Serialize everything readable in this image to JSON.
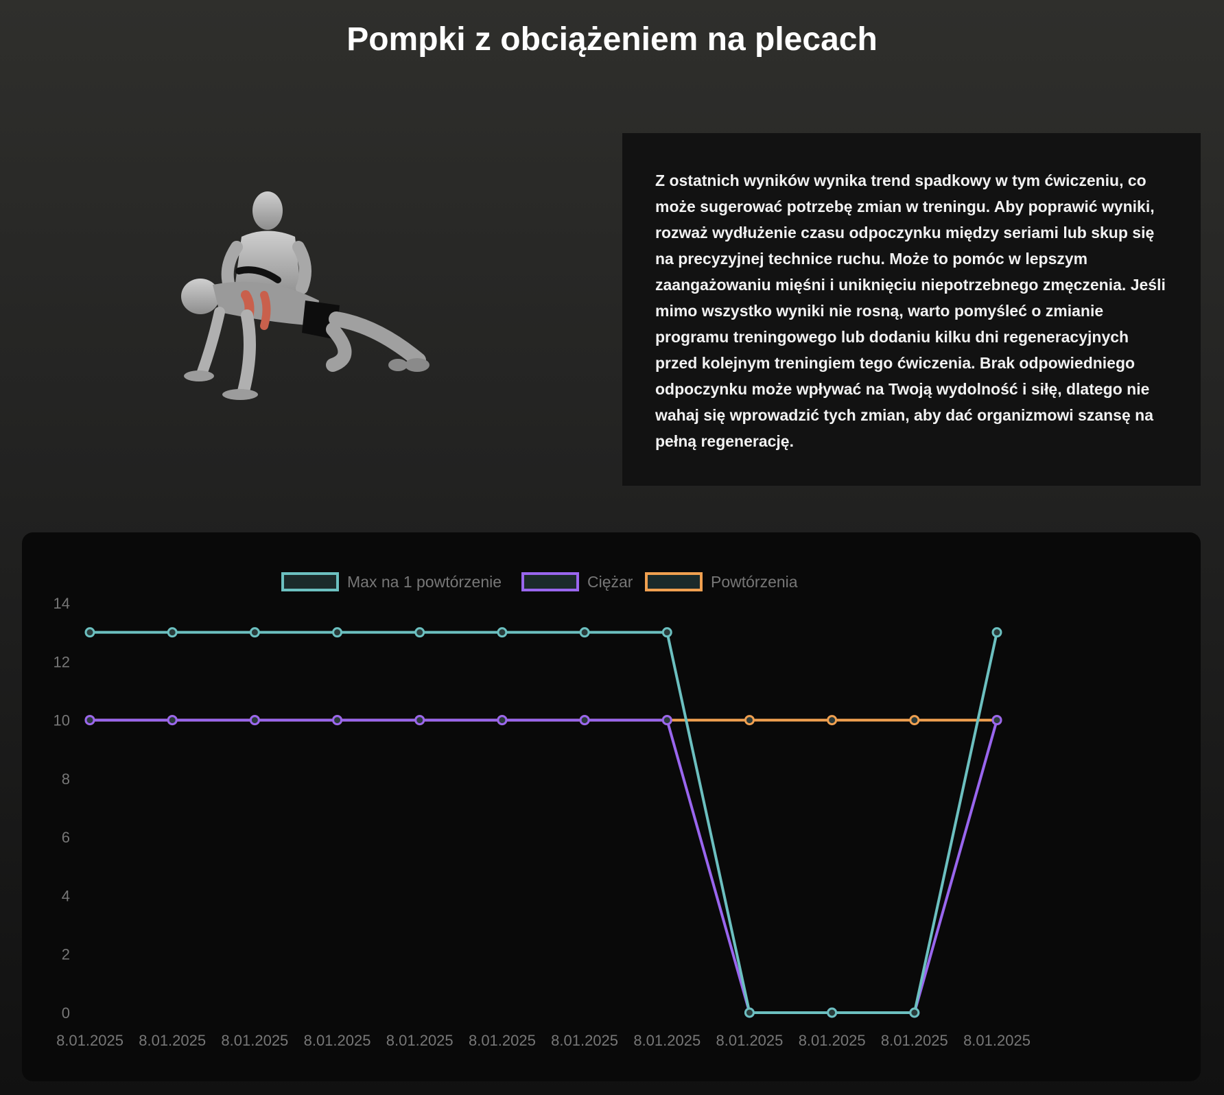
{
  "page": {
    "title": "Pompki z obciążeniem na plecach"
  },
  "advice": {
    "text": "Z ostatnich wyników wynika trend spadkowy w tym ćwiczeniu, co może sugerować potrzebę zmian w treningu. Aby poprawić wyniki, rozważ wydłużenie czasu odpoczynku między seriami lub skup się na precyzyjnej technice ruchu. Może to pomóc w lepszym zaangażowaniu mięśni i uniknięciu niepotrzebnego zmęczenia. Jeśli mimo wszystko wyniki nie rosną, warto pomyśleć o zmianie programu treningowego lub dodaniu kilku dni regeneracyjnych przed kolejnym treningiem tego ćwiczenia. Brak odpowiedniego odpoczynku może wpływać na Twoją wydolność i siłę, dlatego nie wahaj się wprowadzić tych zmian, aby dać organizmowi szansę na pełną regenerację."
  },
  "illustration": {
    "icon": "weighted-pushup-figure"
  },
  "chart_data": {
    "type": "line",
    "categories": [
      "8.01.2025",
      "8.01.2025",
      "8.01.2025",
      "8.01.2025",
      "8.01.2025",
      "8.01.2025",
      "8.01.2025",
      "8.01.2025",
      "8.01.2025",
      "8.01.2025",
      "8.01.2025",
      "8.01.2025"
    ],
    "series": [
      {
        "name": "Max na 1 powtórzenie",
        "color": "#6cc0c0",
        "values": [
          13,
          13,
          13,
          13,
          13,
          13,
          13,
          13,
          0,
          0,
          0,
          13
        ]
      },
      {
        "name": "Ciężar",
        "color": "#9966ee",
        "values": [
          10,
          10,
          10,
          10,
          10,
          10,
          10,
          10,
          0,
          0,
          0,
          10
        ]
      },
      {
        "name": "Powtórzenia",
        "color": "#f0a050",
        "values": [
          10,
          10,
          10,
          10,
          10,
          10,
          10,
          10,
          10,
          10,
          10,
          10
        ]
      }
    ],
    "ylim": [
      0,
      14
    ],
    "yticks": [
      0,
      2,
      4,
      6,
      8,
      10,
      12,
      14
    ],
    "legend_position": "top-center",
    "grid": false
  }
}
